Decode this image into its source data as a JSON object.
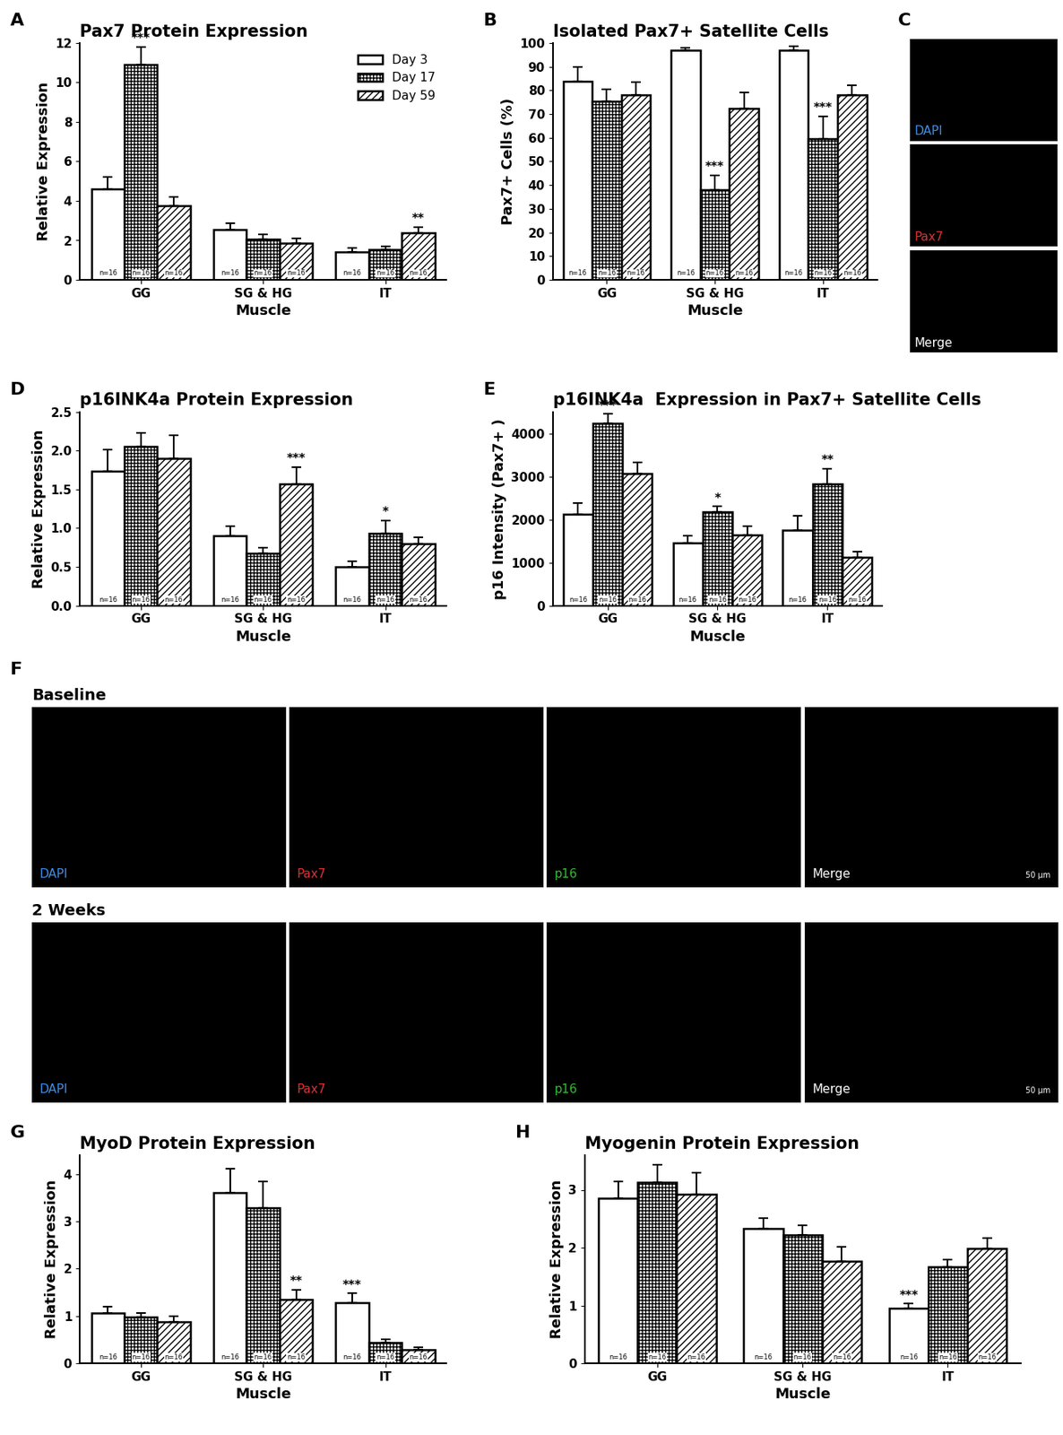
{
  "chart_data": [
    {
      "panel": "A",
      "type": "bar",
      "title": "Pax7 Protein Expression",
      "xlabel": "Muscle",
      "ylabel": "Relative Expression",
      "categories": [
        "GG",
        "SG & HG",
        "IT"
      ],
      "ylim": [
        0,
        12
      ],
      "yticks": [
        0,
        2,
        4,
        6,
        8,
        10,
        12
      ],
      "legend": "upper right",
      "series": [
        {
          "name": "Day 3",
          "color": "#ffffff",
          "values": [
            4.6,
            2.55,
            1.4
          ],
          "errors": [
            0.6,
            0.3,
            0.2
          ],
          "n_labels": [
            "n=16",
            "n=16",
            "n=16"
          ],
          "significance": [
            null,
            null,
            null
          ]
        },
        {
          "name": "Day 17",
          "color": "#ffffff",
          "values": [
            10.9,
            2.05,
            1.55
          ],
          "errors": [
            0.9,
            0.25,
            0.15
          ],
          "n_labels": [
            "n=16",
            "n=16",
            "n=16"
          ],
          "significance": [
            "***",
            null,
            null
          ]
        },
        {
          "name": "Day 59",
          "color": "#ffffff",
          "values": [
            3.75,
            1.85,
            2.4
          ],
          "errors": [
            0.45,
            0.25,
            0.25
          ],
          "n_labels": [
            "n=16",
            "n=16",
            "n=16"
          ],
          "significance": [
            null,
            null,
            "**"
          ]
        }
      ]
    },
    {
      "panel": "B",
      "type": "bar",
      "title": "Isolated Pax7+ Satellite Cells",
      "xlabel": "Muscle",
      "ylabel": "Pax7+ Cells (%)",
      "categories": [
        "GG",
        "SG & HG",
        "IT"
      ],
      "ylim": [
        0,
        100
      ],
      "yticks": [
        0,
        10,
        20,
        30,
        40,
        50,
        60,
        70,
        80,
        90,
        100
      ],
      "series": [
        {
          "color": "#ffffff",
          "values": [
            84,
            97,
            97
          ],
          "errors": [
            6,
            1,
            1.5
          ],
          "n_labels": [
            "n=16",
            "n=16",
            "n=16"
          ],
          "significance": [
            null,
            null,
            null
          ]
        },
        {
          "color": "#ffffff",
          "values": [
            75.5,
            38,
            59.5
          ],
          "errors": [
            5,
            6,
            9.5
          ],
          "n_labels": [
            "n=16",
            "n=16",
            "n=16"
          ],
          "significance": [
            null,
            "***",
            "***"
          ]
        },
        {
          "color": "#ffffff",
          "values": [
            78,
            72.5,
            78
          ],
          "errors": [
            5.5,
            6.5,
            4
          ],
          "n_labels": [
            "n=16",
            "n=16",
            "n=16"
          ],
          "significance": [
            null,
            null,
            null
          ]
        }
      ]
    },
    {
      "panel": "D",
      "type": "bar",
      "title": "p16INK4a Protein Expression",
      "xlabel": "Muscle",
      "ylabel": "Relative Expression",
      "categories": [
        "GG",
        "SG & HG",
        "IT"
      ],
      "ylim": [
        0,
        2.5
      ],
      "yticks": [
        {
          "value": 0,
          "label": "0.0"
        },
        0.5,
        {
          "value": 1,
          "label": "1.0"
        },
        1.5,
        {
          "value": 2,
          "label": "2.0"
        },
        2.5
      ],
      "series": [
        {
          "color": "#ffffff",
          "values": [
            1.73,
            0.9,
            0.5
          ],
          "errors": [
            0.28,
            0.12,
            0.07
          ],
          "n_labels": [
            "n=16",
            "n=16",
            "n=16"
          ],
          "significance": [
            null,
            null,
            null
          ]
        },
        {
          "color": "#ffffff",
          "values": [
            2.05,
            0.68,
            0.93
          ],
          "errors": [
            0.18,
            0.07,
            0.17
          ],
          "n_labels": [
            "n=16",
            "n=16",
            "n=16"
          ],
          "significance": [
            null,
            null,
            "*"
          ]
        },
        {
          "color": "#ffffff",
          "values": [
            1.9,
            1.57,
            0.8
          ],
          "errors": [
            0.3,
            0.22,
            0.08
          ],
          "n_labels": [
            "n=16",
            "n=16",
            "n=16"
          ],
          "significance": [
            null,
            "***",
            null
          ]
        }
      ]
    },
    {
      "panel": "E",
      "type": "bar",
      "title": "p16INK4a  Expression in Pax7+ Satellite Cells",
      "xlabel": "Muscle",
      "ylabel": "p16 Intensity (Pax7+ )",
      "categories": [
        "GG",
        "SG & HG",
        "IT"
      ],
      "ylim": [
        0,
        4500
      ],
      "yticks": [
        0,
        1000,
        2000,
        3000,
        4000
      ],
      "series": [
        {
          "color": "#ffffff",
          "values": [
            2130,
            1460,
            1760
          ],
          "errors": [
            250,
            160,
            330
          ],
          "n_labels": [
            "n=16",
            "n=16",
            "n=16"
          ],
          "significance": [
            null,
            null,
            null
          ]
        },
        {
          "color": "#ffffff",
          "values": [
            4230,
            2180,
            2830
          ],
          "errors": [
            220,
            120,
            350
          ],
          "n_labels": [
            "n=16",
            "n=16",
            "n=16"
          ],
          "significance": [
            "***",
            "*",
            "**"
          ]
        },
        {
          "color": "#ffffff",
          "values": [
            3060,
            1650,
            1130
          ],
          "errors": [
            270,
            200,
            120
          ],
          "n_labels": [
            "n=16",
            "n=16",
            "n=16"
          ],
          "significance": [
            null,
            null,
            null
          ]
        }
      ]
    },
    {
      "panel": "G",
      "type": "bar",
      "title": "MyoD Protein Expression",
      "xlabel": "Muscle",
      "ylabel": "Relative Expression",
      "categories": [
        "GG",
        "SG & HG",
        "IT"
      ],
      "ylim": [
        0,
        4.4
      ],
      "yticks": [
        0,
        1,
        2,
        3,
        4
      ],
      "series": [
        {
          "color": "#ffffff",
          "values": [
            1.07,
            3.6,
            1.28
          ],
          "errors": [
            0.13,
            0.52,
            0.2
          ],
          "n_labels": [
            "n=16",
            "n=16",
            "n=16"
          ],
          "significance": [
            null,
            null,
            "***"
          ]
        },
        {
          "color": "#ffffff",
          "values": [
            0.98,
            3.28,
            0.43
          ],
          "errors": [
            0.08,
            0.57,
            0.07
          ],
          "n_labels": [
            "n=16",
            "n=16",
            "n=16"
          ],
          "significance": [
            null,
            null,
            null
          ]
        },
        {
          "color": "#ffffff",
          "values": [
            0.88,
            1.35,
            0.28
          ],
          "errors": [
            0.12,
            0.2,
            0.05
          ],
          "n_labels": [
            "n=16",
            "n=16",
            "n=16"
          ],
          "significance": [
            null,
            "**",
            null
          ]
        }
      ]
    },
    {
      "panel": "H",
      "type": "bar",
      "title": "Myogenin Protein Expression",
      "xlabel": "Muscle",
      "ylabel": "Relative Expression",
      "categories": [
        "GG",
        "SG & HG",
        "IT"
      ],
      "ylim": [
        0,
        3.6
      ],
      "yticks": [
        0,
        1,
        2,
        3
      ],
      "series": [
        {
          "color": "#ffffff",
          "values": [
            2.85,
            2.33,
            0.95
          ],
          "errors": [
            0.3,
            0.18,
            0.08
          ],
          "n_labels": [
            "n=16",
            "n=16",
            "n=16"
          ],
          "significance": [
            null,
            null,
            "***"
          ]
        },
        {
          "color": "#ffffff",
          "values": [
            3.13,
            2.22,
            1.67
          ],
          "errors": [
            0.3,
            0.17,
            0.13
          ],
          "n_labels": [
            "n=16",
            "n=16",
            "n=16"
          ],
          "significance": [
            null,
            null,
            null
          ]
        },
        {
          "color": "#ffffff",
          "values": [
            2.92,
            1.77,
            1.98
          ],
          "errors": [
            0.38,
            0.25,
            0.18
          ],
          "n_labels": [
            "n=16",
            "n=16",
            "n=16"
          ],
          "significance": [
            null,
            null,
            null
          ]
        }
      ]
    }
  ],
  "images": [
    {
      "panel": "C",
      "labels": [
        "DAPI",
        "Pax7",
        "Merge"
      ],
      "colors": [
        "#3b8eea",
        "#e03030",
        "#ffffff"
      ]
    },
    {
      "panel": "F",
      "rows": [
        "Baseline",
        "2 Weeks"
      ],
      "labels": [
        "DAPI",
        "Pax7",
        "p16",
        "Merge"
      ],
      "colors": [
        "#3b8eea",
        "#e03030",
        "#30c030",
        "#ffffff"
      ],
      "scale_bar": "50 µm"
    }
  ]
}
